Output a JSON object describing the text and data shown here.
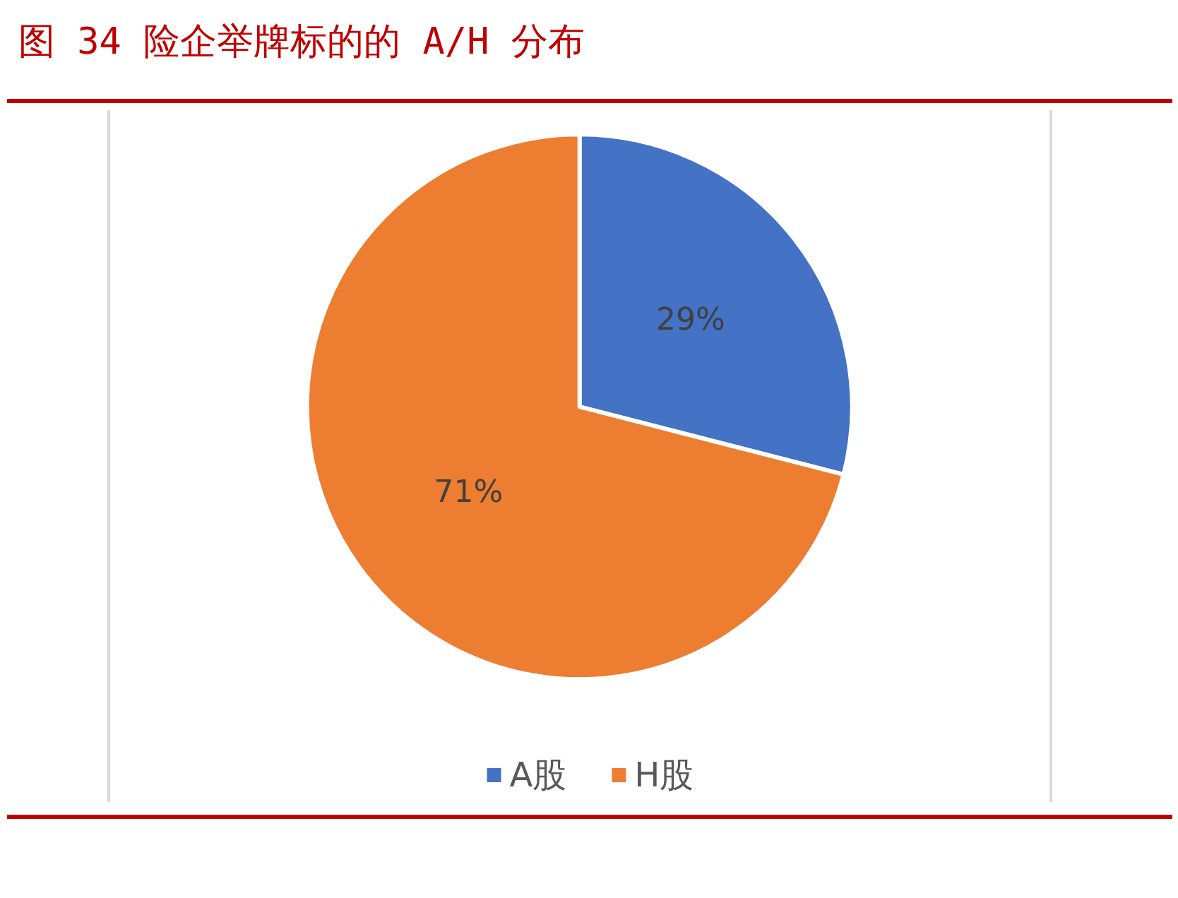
{
  "chart_data": {
    "type": "pie",
    "title": "图 34 险企举牌标的的 A/H 分布",
    "categories": [
      "A股",
      "H股"
    ],
    "values": [
      29,
      71
    ],
    "colors": [
      "#4472c4",
      "#ed7d31"
    ],
    "value_labels": [
      "29%",
      "71%"
    ],
    "legend": "bottom"
  }
}
